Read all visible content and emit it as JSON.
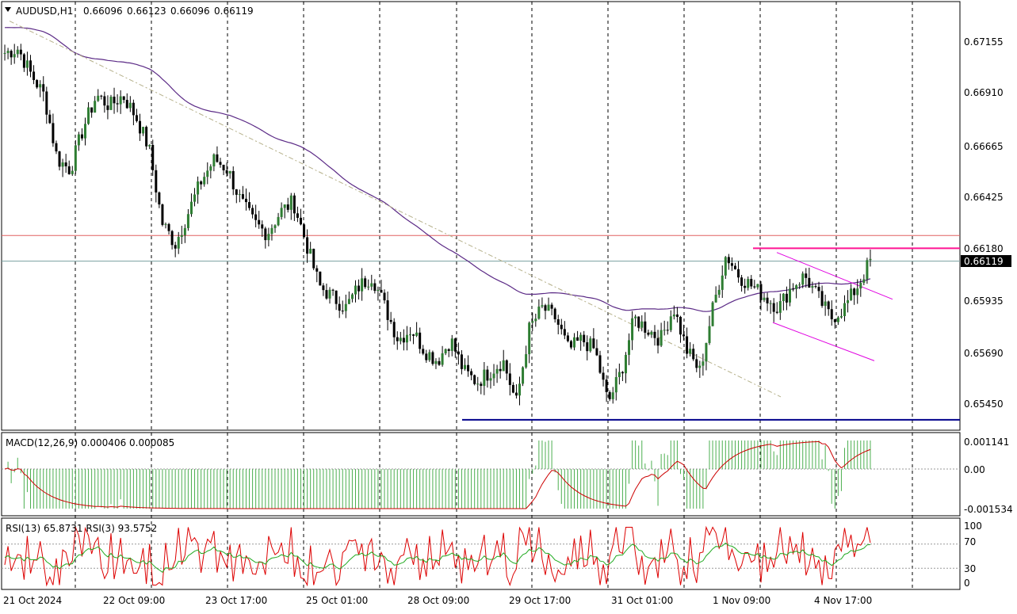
{
  "main_chart": {
    "header": {
      "symbol": "AUDUSD,H1",
      "open": "0.66096",
      "high": "0.66123",
      "low": "0.66096",
      "close": "0.66119"
    },
    "price_axis_labels": [
      "0.67155",
      "0.66910",
      "0.66665",
      "0.66425",
      "0.66180",
      "0.65935",
      "0.65690",
      "0.65450"
    ],
    "current_price_label": "0.66119",
    "current_price": 0.66119,
    "resistance_level": 0.6624,
    "support_level": 0.65372,
    "upper_level": 0.6618,
    "colors": {
      "bull_candle": "#2e7d32",
      "bear_candle": "#000000",
      "wick": "#000000",
      "moving_average": "#5b2a86",
      "trendline": "#b5b08a",
      "channel": "#e000e0",
      "resistance_line": "#e06060",
      "support_line": "#00008b",
      "upper_line": "#ff1493",
      "current_price_line": "#7aa0a0"
    }
  },
  "macd": {
    "label": "MACD(12,26,9) 0.000406 0.000085",
    "axis_labels": [
      "0.001141",
      "0.00",
      "-0.001534"
    ],
    "colors": {
      "histogram": "#4caf50",
      "signal": "#cc0000"
    }
  },
  "rsi": {
    "label": "RSI(13) 65.8731 RSI(3) 93.5752",
    "axis_labels": [
      "100",
      "70",
      "30",
      "0"
    ],
    "colors": {
      "rsi_slow": "#22aa22",
      "rsi_fast": "#dd0000"
    }
  },
  "time_axis_labels": [
    "21 Oct 2024",
    "22 Oct 09:00",
    "23 Oct 17:00",
    "25 Oct 01:00",
    "28 Oct 09:00",
    "29 Oct 17:00",
    "31 Oct 01:00",
    "1 Nov 09:00",
    "4 Nov 17:00"
  ],
  "chart_data": {
    "type": "candlestick",
    "symbol": "AUDUSD",
    "timeframe": "H1",
    "x": [
      "21 Oct 2024",
      "22 Oct 09:00",
      "23 Oct 17:00",
      "25 Oct 01:00",
      "28 Oct 09:00",
      "29 Oct 17:00",
      "31 Oct 01:00",
      "1 Nov 09:00",
      "4 Nov 17:00"
    ],
    "close_path": [
      0.671,
      0.6712,
      0.67,
      0.669,
      0.666,
      0.6655,
      0.6675,
      0.669,
      0.6685,
      0.669,
      0.668,
      0.6665,
      0.663,
      0.662,
      0.6635,
      0.665,
      0.666,
      0.6655,
      0.664,
      0.663,
      0.6625,
      0.6635,
      0.664,
      0.662,
      0.66,
      0.6595,
      0.659,
      0.66,
      0.6605,
      0.659,
      0.6575,
      0.658,
      0.657,
      0.6565,
      0.6575,
      0.656,
      0.6555,
      0.656,
      0.6565,
      0.6545,
      0.658,
      0.659,
      0.6585,
      0.657,
      0.6575,
      0.657,
      0.6545,
      0.656,
      0.6585,
      0.658,
      0.6575,
      0.659,
      0.657,
      0.656,
      0.659,
      0.6615,
      0.6605,
      0.66,
      0.6595,
      0.659,
      0.66,
      0.6605,
      0.6595,
      0.6585,
      0.659,
      0.66,
      0.6612
    ],
    "ylim": [
      0.6532,
      0.673
    ]
  }
}
